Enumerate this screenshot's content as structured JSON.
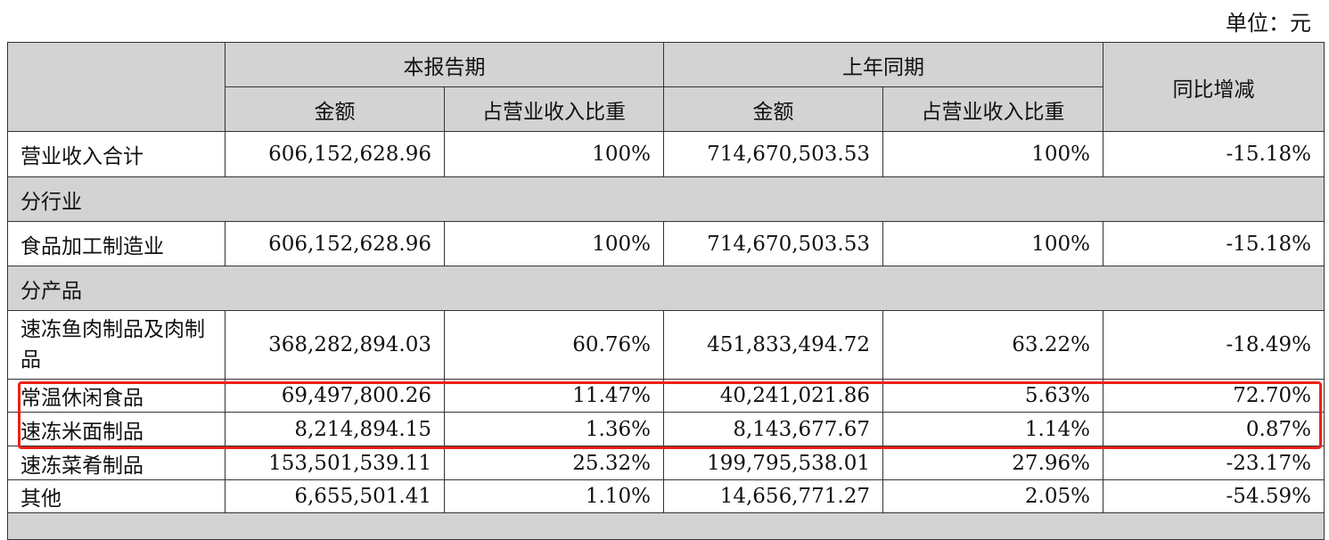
{
  "unit_label": "单位：元",
  "header": {
    "current_period": "本报告期",
    "prior_period": "上年同期",
    "yoy_change": "同比增减",
    "amount": "金额",
    "share": "占营业收入比重"
  },
  "total": {
    "label": "营业收入合计",
    "cur_amount": "606,152,628.96",
    "cur_share": "100%",
    "prev_amount": "714,670,503.53",
    "prev_share": "100%",
    "yoy": "-15.18%"
  },
  "section_industry": "分行业",
  "industry_rows": [
    {
      "label": "食品加工制造业",
      "cur_amount": "606,152,628.96",
      "cur_share": "100%",
      "prev_amount": "714,670,503.53",
      "prev_share": "100%",
      "yoy": "-15.18%"
    }
  ],
  "section_product": "分产品",
  "product_rows": [
    {
      "label": "速冻鱼肉制品及肉制品",
      "cur_amount": "368,282,894.03",
      "cur_share": "60.76%",
      "prev_amount": "451,833,494.72",
      "prev_share": "63.22%",
      "yoy": "-18.49%"
    },
    {
      "label": "常温休闲食品",
      "cur_amount": "69,497,800.26",
      "cur_share": "11.47%",
      "prev_amount": "40,241,021.86",
      "prev_share": "5.63%",
      "yoy": "72.70%"
    },
    {
      "label": "速冻米面制品",
      "cur_amount": "8,214,894.15",
      "cur_share": "1.36%",
      "prev_amount": "8,143,677.67",
      "prev_share": "1.14%",
      "yoy": "0.87%"
    },
    {
      "label": "速冻菜肴制品",
      "cur_amount": "153,501,539.11",
      "cur_share": "25.32%",
      "prev_amount": "199,795,538.01",
      "prev_share": "27.96%",
      "yoy": "-23.17%"
    },
    {
      "label": "其他",
      "cur_amount": "6,655,501.41",
      "cur_share": "1.10%",
      "prev_amount": "14,656,771.27",
      "prev_share": "2.05%",
      "yoy": "-54.59%"
    }
  ],
  "highlight_color": "#f0201a"
}
